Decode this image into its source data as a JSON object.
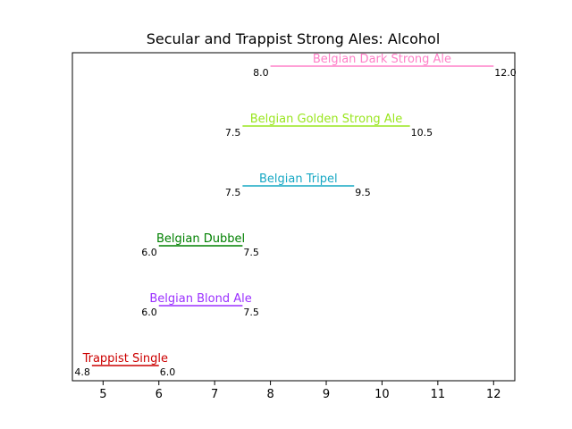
{
  "chart_data": {
    "type": "range",
    "title": "Secular and Trappist Strong Ales: Alcohol",
    "xlabel": "",
    "ylabel": "",
    "xlim": [
      4.45,
      12.38
    ],
    "xticks": [
      5,
      6,
      7,
      8,
      9,
      10,
      11,
      12
    ],
    "grid": false,
    "series": [
      {
        "name": "Trappist Single",
        "min": 4.8,
        "max": 6.0,
        "min_label": "4.8",
        "max_label": "6.0",
        "color": "#cc0000"
      },
      {
        "name": "Belgian Blond Ale",
        "min": 6.0,
        "max": 7.5,
        "min_label": "6.0",
        "max_label": "7.5",
        "color": "#9b30ff"
      },
      {
        "name": "Belgian Dubbel",
        "min": 6.0,
        "max": 7.5,
        "min_label": "6.0",
        "max_label": "7.5",
        "color": "#008000"
      },
      {
        "name": "Belgian Tripel",
        "min": 7.5,
        "max": 9.5,
        "min_label": "7.5",
        "max_label": "9.5",
        "color": "#17a8c4"
      },
      {
        "name": "Belgian Golden Strong Ale",
        "min": 7.5,
        "max": 10.5,
        "min_label": "7.5",
        "max_label": "10.5",
        "color": "#99e61e"
      },
      {
        "name": "Belgian Dark Strong Ale",
        "min": 8.0,
        "max": 12.0,
        "min_label": "8.0",
        "max_label": "12.0",
        "color": "#ff80c8"
      }
    ]
  }
}
